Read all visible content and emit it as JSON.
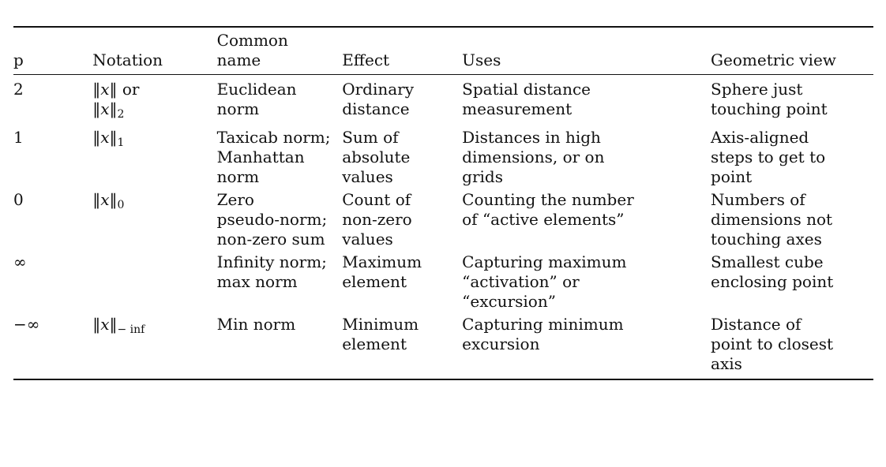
{
  "table": {
    "headers": [
      "p",
      "Notation",
      "Common\nname",
      "Effect",
      "Uses",
      "Geometric view"
    ],
    "rows": [
      {
        "p": "2",
        "notation": {
          "pre": "‖",
          "var": "x",
          "post": "‖ or",
          "line2_pre": "‖",
          "line2_var": "x",
          "line2_post": "‖",
          "sub": "2"
        },
        "name": "Euclidean\nnorm",
        "effect": "Ordinary\ndistance",
        "uses": "Spatial distance\nmeasurement",
        "geo": "Sphere just\ntouching point"
      },
      {
        "p": "1",
        "notation": {
          "pre": "‖",
          "var": "x",
          "post": "‖",
          "sub": "1"
        },
        "name": "Taxicab norm;\nManhattan\nnorm",
        "effect": "Sum of\nabsolute\nvalues",
        "uses": "Distances in high\ndimensions, or on\ngrids",
        "geo": "Axis-aligned\nsteps to get to\npoint"
      },
      {
        "p": "0",
        "notation": {
          "pre": "‖",
          "var": "x",
          "post": "‖",
          "sub": "0"
        },
        "name": "Zero\npseudo-norm;\nnon-zero sum",
        "effect": "Count of\nnon-zero\nvalues",
        "uses": "Counting the number\nof “active elements”",
        "geo": "Numbers of\ndimensions not\ntouching axes"
      },
      {
        "p": "∞",
        "notation": {
          "pre": "",
          "var": "",
          "post": "",
          "sub": ""
        },
        "name": "Infinity norm;\nmax norm",
        "effect": "Maximum\nelement",
        "uses": "Capturing maximum\n“activation” or\n“excursion”",
        "geo": "Smallest cube\nenclosing point"
      },
      {
        "p": "−∞",
        "notation": {
          "pre": "‖",
          "var": "x",
          "post": "‖",
          "sub": "− inf"
        },
        "name": "Min norm",
        "effect": "Minimum\nelement",
        "uses": "Capturing minimum\nexcursion",
        "geo": "Distance of\npoint to closest\naxis"
      }
    ]
  }
}
